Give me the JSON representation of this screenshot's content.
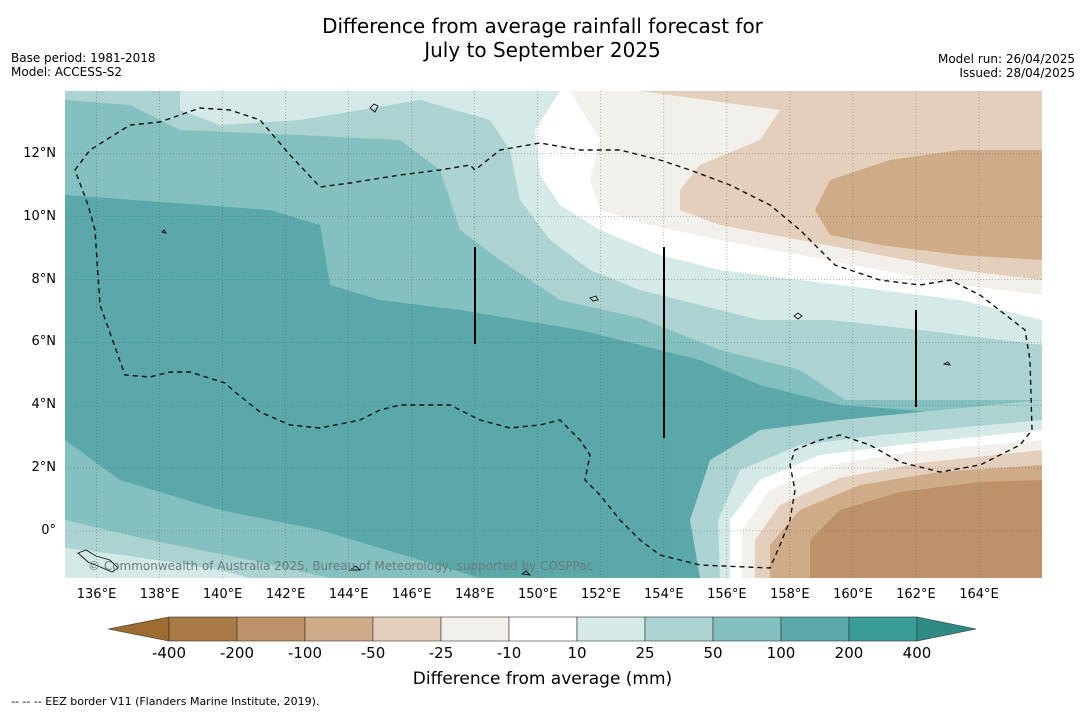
{
  "title": {
    "line1": "Difference from average rainfall forecast for",
    "line2": "July to September 2025"
  },
  "meta_left": {
    "base_period": "Base period: 1981-2018",
    "model": "Model: ACCESS-S2"
  },
  "meta_right": {
    "model_run": "Model run: 26/04/2025",
    "issued": "Issued: 28/04/2025"
  },
  "map": {
    "lon_range": [
      135,
      166
    ],
    "lat_range": [
      -1.5,
      14
    ],
    "lat_labels": [
      "12°N",
      "10°N",
      "8°N",
      "6°N",
      "4°N",
      "2°N",
      "0°"
    ],
    "lat_values": [
      12,
      10,
      8,
      6,
      4,
      2,
      0
    ],
    "lon_labels": [
      "136°E",
      "138°E",
      "140°E",
      "142°E",
      "144°E",
      "146°E",
      "148°E",
      "150°E",
      "152°E",
      "154°E",
      "156°E",
      "158°E",
      "160°E",
      "162°E",
      "164°E"
    ],
    "lon_values": [
      136,
      138,
      140,
      142,
      144,
      146,
      148,
      150,
      152,
      154,
      156,
      158,
      160,
      162,
      164
    ],
    "grid": true,
    "copyright": "© Commonwealth of Australia 2025, Bureau of Meteorology, supported by COSPPac"
  },
  "colorbar": {
    "ticks": [
      "-400",
      "-200",
      "-100",
      "-50",
      "-25",
      "-10",
      "10",
      "25",
      "50",
      "100",
      "200",
      "400"
    ],
    "colors": [
      "#a87a44",
      "#bd9268",
      "#cfab88",
      "#e3cfbc",
      "#f3efea",
      "#ffffff",
      "#d5e9e8",
      "#acd3d2",
      "#84c0bf",
      "#5aa8a9",
      "#389d98"
    ],
    "extend_low_color": "#9d6a32",
    "extend_high_color": "#2f8a86",
    "label": "Difference from average (mm)"
  },
  "footnote": "-- -- -- EEZ border V11 (Flanders Marine Institute, 2019)."
}
